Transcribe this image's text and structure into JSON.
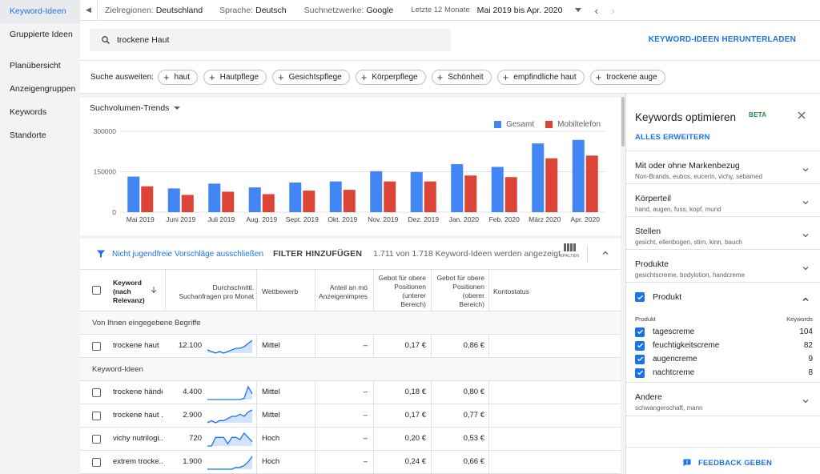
{
  "sidebar": {
    "items": [
      {
        "label": "Keyword-Ideen",
        "active": true
      },
      {
        "label": "Gruppierte Ideen"
      },
      {
        "label": "Planübersicht"
      },
      {
        "label": "Anzeigengruppen"
      },
      {
        "label": "Keywords"
      },
      {
        "label": "Standorte"
      }
    ]
  },
  "topbar": {
    "regions_label": "Zielregionen:",
    "regions_value": "Deutschland",
    "language_label": "Sprache:",
    "language_value": "Deutsch",
    "networks_label": "Suchnetzwerke:",
    "networks_value": "Google",
    "period_label": "Letzte 12 Monate",
    "period_value": "Mai 2019 bis Apr. 2020"
  },
  "search": {
    "value": "trockene Haut",
    "download_label": "KEYWORD-IDEEN HERUNTERLADEN"
  },
  "expand": {
    "label": "Suche ausweiten:",
    "chips": [
      "haut",
      "Hautpflege",
      "Gesichtspflege",
      "Körperpflege",
      "Schönheit",
      "empfindliche haut",
      "trockene auge"
    ]
  },
  "chart": {
    "selector_label": "Suchvolumen-Trends",
    "colors": {
      "total": "#4285f4",
      "mobile": "#db4437"
    }
  },
  "chart_data": {
    "type": "bar",
    "categories": [
      "Mai 2019",
      "Juni 2019",
      "Juli 2019",
      "Aug. 2019",
      "Sept. 2019",
      "Okt. 2019",
      "Nov. 2019",
      "Dez. 2019",
      "Jan. 2020",
      "Feb. 2020",
      "März 2020",
      "Apr. 2020"
    ],
    "series": [
      {
        "name": "Gesamt",
        "values": [
          132000,
          88000,
          106000,
          92000,
          110000,
          114000,
          152000,
          149000,
          178000,
          168000,
          255000,
          268000
        ]
      },
      {
        "name": "Mobiltelefon",
        "values": [
          96000,
          64000,
          76000,
          67000,
          80000,
          83000,
          114000,
          114000,
          136000,
          130000,
          200000,
          210000
        ]
      }
    ],
    "yticks": [
      "0",
      "150000",
      "300000"
    ],
    "ylim": [
      0,
      300000
    ],
    "legend": "top-right",
    "grid": true
  },
  "filters": {
    "exclude_label": "Nicht jugendfreie Vorschläge ausschließen",
    "add_filter_label": "FILTER HINZUFÜGEN",
    "count_text": "1.711 von 1.718 Keyword-Ideen werden angezeigt",
    "columns_label": "SPALTEN"
  },
  "table": {
    "headers": {
      "keyword_l1": "Keyword",
      "keyword_l2": "(nach",
      "keyword_l3": "Relevanz)",
      "avg_l1": "Durchschnittl.",
      "avg_l2": "Suchanfragen pro Monat",
      "competition": "Wettbewerb",
      "share_l1": "Anteil an mö",
      "share_l2": "Anzeigenimpres",
      "bid_low_l1": "Gebot für obere",
      "bid_low_l2": "Positionen",
      "bid_low_l3": "(unterer",
      "bid_low_l4": "Bereich)",
      "bid_high_l1": "Gebot für obere",
      "bid_high_l2": "Positionen",
      "bid_high_l3": "(oberer",
      "bid_high_l4": "Bereich)",
      "status": "Kontostatus"
    },
    "section_entered": "Von Ihnen eingegebene Begriffe",
    "section_ideas": "Keyword-Ideen",
    "entered_rows": [
      {
        "keyword": "trockene haut",
        "volume": "12.100",
        "competition": "Mittel",
        "share": "–",
        "bid_low": "0,17 €",
        "bid_high": "0,86 €",
        "trend": [
          5,
          4,
          3,
          4,
          3,
          4,
          5,
          6,
          6,
          7,
          9,
          11
        ]
      }
    ],
    "idea_rows": [
      {
        "keyword": "trockene hände",
        "volume": "4.400",
        "competition": "Mittel",
        "share": "–",
        "bid_low": "0,18 €",
        "bid_high": "0,80 €",
        "trend": [
          3,
          3,
          3,
          3,
          3,
          3,
          3,
          3,
          3,
          4,
          14,
          8
        ]
      },
      {
        "keyword": "trockene haut ...",
        "volume": "2.900",
        "competition": "Mittel",
        "share": "–",
        "bid_low": "0,17 €",
        "bid_high": "0,77 €",
        "trend": [
          3,
          4,
          3,
          4,
          4,
          5,
          6,
          6,
          7,
          6,
          8,
          9
        ]
      },
      {
        "keyword": "vichy nutrilogi...",
        "volume": "720",
        "competition": "Hoch",
        "share": "–",
        "bid_low": "0,20 €",
        "bid_high": "0,53 €",
        "trend": [
          3,
          3,
          7,
          7,
          7,
          4,
          7,
          7,
          6,
          9,
          7,
          5
        ]
      },
      {
        "keyword": "extrem trocke...",
        "volume": "1.900",
        "competition": "Hoch",
        "share": "–",
        "bid_low": "0,24 €",
        "bid_high": "0,66 €",
        "trend": [
          2,
          2,
          2,
          2,
          2,
          2,
          2,
          3,
          3,
          4,
          6,
          9
        ]
      }
    ]
  },
  "panel": {
    "title": "Keywords optimieren",
    "beta": "BETA",
    "expand_all": "ALLES ERWEITERN",
    "sections": [
      {
        "title": "Mit oder ohne Markenbezug",
        "sub": "Non-Brands, eubos, eucerin, vichy, sebamed"
      },
      {
        "title": "Körperteil",
        "sub": "hand, augen, fuss, kopf, mund"
      },
      {
        "title": "Stellen",
        "sub": "gesicht, ellenbogen, stirn, kinn, bauch"
      },
      {
        "title": "Produkte",
        "sub": "gesichtscreme, bodylotion, handcreme"
      }
    ],
    "product": {
      "title": "Produkt",
      "col_product": "Produkt",
      "col_keywords": "Keywords",
      "items": [
        {
          "name": "tagescreme",
          "count": "104"
        },
        {
          "name": "feuchtigkeitscreme",
          "count": "82"
        },
        {
          "name": "augencreme",
          "count": "9"
        },
        {
          "name": "nachtcreme",
          "count": "8"
        }
      ]
    },
    "other": {
      "title": "Andere",
      "sub": "schwangerschaft, mann"
    },
    "feedback_label": "FEEDBACK GEBEN"
  }
}
